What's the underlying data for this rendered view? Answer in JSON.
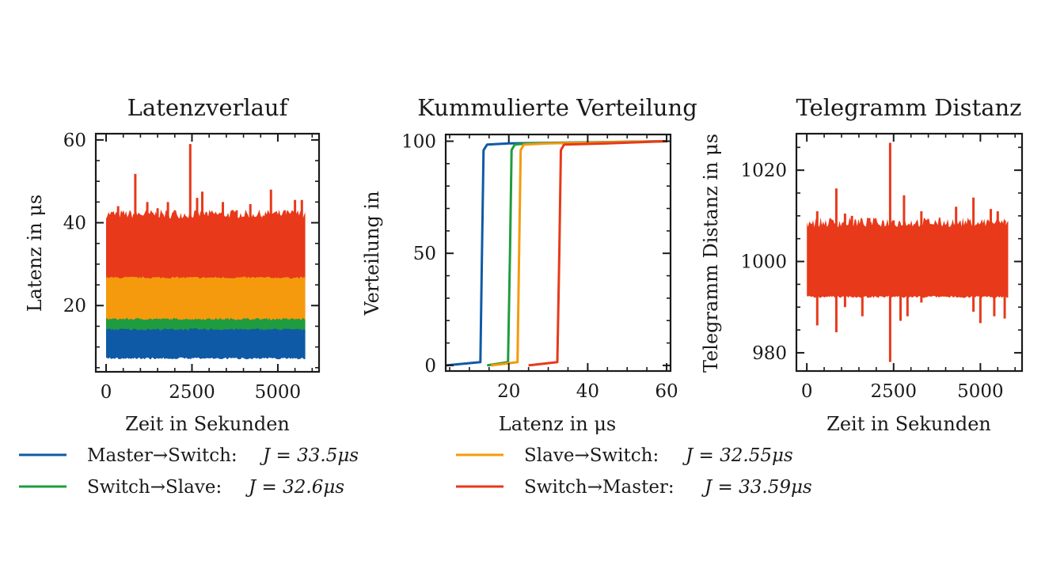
{
  "colors": {
    "master_switch": "#0f5aa6",
    "switch_slave": "#1f9c3f",
    "slave_switch": "#f59a0c",
    "switch_master": "#e8391a",
    "axis": "#1a1a1a"
  },
  "legend": {
    "items": [
      {
        "key": "master_switch",
        "label": "Master→Switch:",
        "formula": "J = 33.5μs"
      },
      {
        "key": "slave_switch",
        "label": "Slave→Switch:",
        "formula": "J = 32.55μs"
      },
      {
        "key": "switch_slave",
        "label": "Switch→Slave:",
        "formula": "J = 32.6μs"
      },
      {
        "key": "switch_master",
        "label": "Switch→Master:",
        "formula": "J = 33.59μs"
      }
    ]
  },
  "chart_data": [
    {
      "type": "area",
      "title": "Latenzverlauf",
      "xlabel": "Zeit in Sekunden",
      "ylabel": "Latenz in μs",
      "xlim": [
        -300,
        6200
      ],
      "ylim": [
        4,
        61.5
      ],
      "xticks": [
        0,
        2500,
        5000
      ],
      "yticks": [
        20,
        40,
        60
      ],
      "grid": false,
      "x_extent": [
        0,
        5800
      ],
      "bands": [
        {
          "key": "master_switch",
          "low": 7.5,
          "high": 14.0
        },
        {
          "key": "switch_slave",
          "low": 14.0,
          "high": 16.5
        },
        {
          "key": "slave_switch",
          "low": 16.5,
          "high": 26.5
        },
        {
          "key": "switch_master",
          "low": 26.5,
          "high": 41.0
        }
      ],
      "spikes": {
        "key": "switch_master",
        "x": [
          100,
          350,
          850,
          1200,
          1500,
          1800,
          2000,
          2450,
          2650,
          2800,
          3400,
          3800,
          4200,
          4500,
          4800,
          5200,
          5500,
          5700
        ],
        "y": [
          42,
          44,
          51.8,
          45,
          43.5,
          45,
          43,
          59,
          46,
          47.5,
          45,
          43,
          44.5,
          41.5,
          48,
          43,
          45.5,
          45.5
        ]
      }
    },
    {
      "type": "line",
      "title": "Kummulierte Verteilung",
      "xlabel": "Latenz in μs",
      "ylabel": "Verteilung in",
      "xlim": [
        4,
        61
      ],
      "ylim": [
        -2.5,
        103
      ],
      "xticks": [
        20,
        40,
        60
      ],
      "yticks": [
        0,
        50,
        100
      ],
      "grid": false,
      "series": [
        {
          "name": "Master→Switch",
          "key": "master_switch",
          "x": [
            4,
            12.8,
            13.2,
            13.6,
            14.5,
            20,
            60
          ],
          "y": [
            0,
            1.5,
            50,
            96,
            98.5,
            99,
            100
          ]
        },
        {
          "name": "Switch→Slave",
          "key": "switch_slave",
          "x": [
            14.5,
            19.8,
            20.3,
            20.7,
            21.5,
            25,
            60
          ],
          "y": [
            0,
            1.5,
            50,
            96,
            98.5,
            99,
            100
          ]
        },
        {
          "name": "Slave→Switch",
          "key": "slave_switch",
          "x": [
            15.5,
            22.2,
            22.6,
            23.0,
            23.8,
            30,
            60
          ],
          "y": [
            0,
            1.5,
            50,
            96,
            98.5,
            99,
            100
          ]
        },
        {
          "name": "Switch→Master",
          "key": "switch_master",
          "x": [
            25,
            32.3,
            32.8,
            33.2,
            34,
            45,
            60
          ],
          "y": [
            0,
            1.5,
            50,
            96,
            98.5,
            99,
            100
          ]
        }
      ]
    },
    {
      "type": "area",
      "title": "Telegramm Distanz",
      "xlabel": "Zeit in Sekunden",
      "ylabel": "Telegramm Distanz in μs",
      "xlim": [
        -300,
        6200
      ],
      "ylim": [
        976,
        1028
      ],
      "xticks": [
        0,
        2500,
        5000
      ],
      "yticks": [
        980,
        1000,
        1020
      ],
      "grid": false,
      "x_extent": [
        0,
        5800
      ],
      "bands": [
        {
          "key": "switch_master",
          "low": 992.5,
          "high": 1007.5
        }
      ],
      "spikes_up": {
        "key": "switch_master",
        "x": [
          300,
          850,
          1100,
          1300,
          1800,
          2400,
          2500,
          2800,
          3300,
          4300,
          4800,
          5300,
          5500,
          5700
        ],
        "y": [
          1011,
          1016,
          1010.5,
          1010,
          1009.5,
          1026,
          1009,
          1014.5,
          1011,
          1012,
          1014,
          1011.5,
          1011,
          1009
        ]
      },
      "spikes_down": {
        "key": "switch_master",
        "x": [
          300,
          850,
          1100,
          1600,
          2400,
          2700,
          2900,
          3300,
          4800,
          5000,
          5400,
          5700
        ],
        "y": [
          986,
          984.5,
          990,
          988,
          978,
          987,
          988,
          991,
          989,
          986.5,
          988,
          987.5
        ]
      }
    }
  ]
}
